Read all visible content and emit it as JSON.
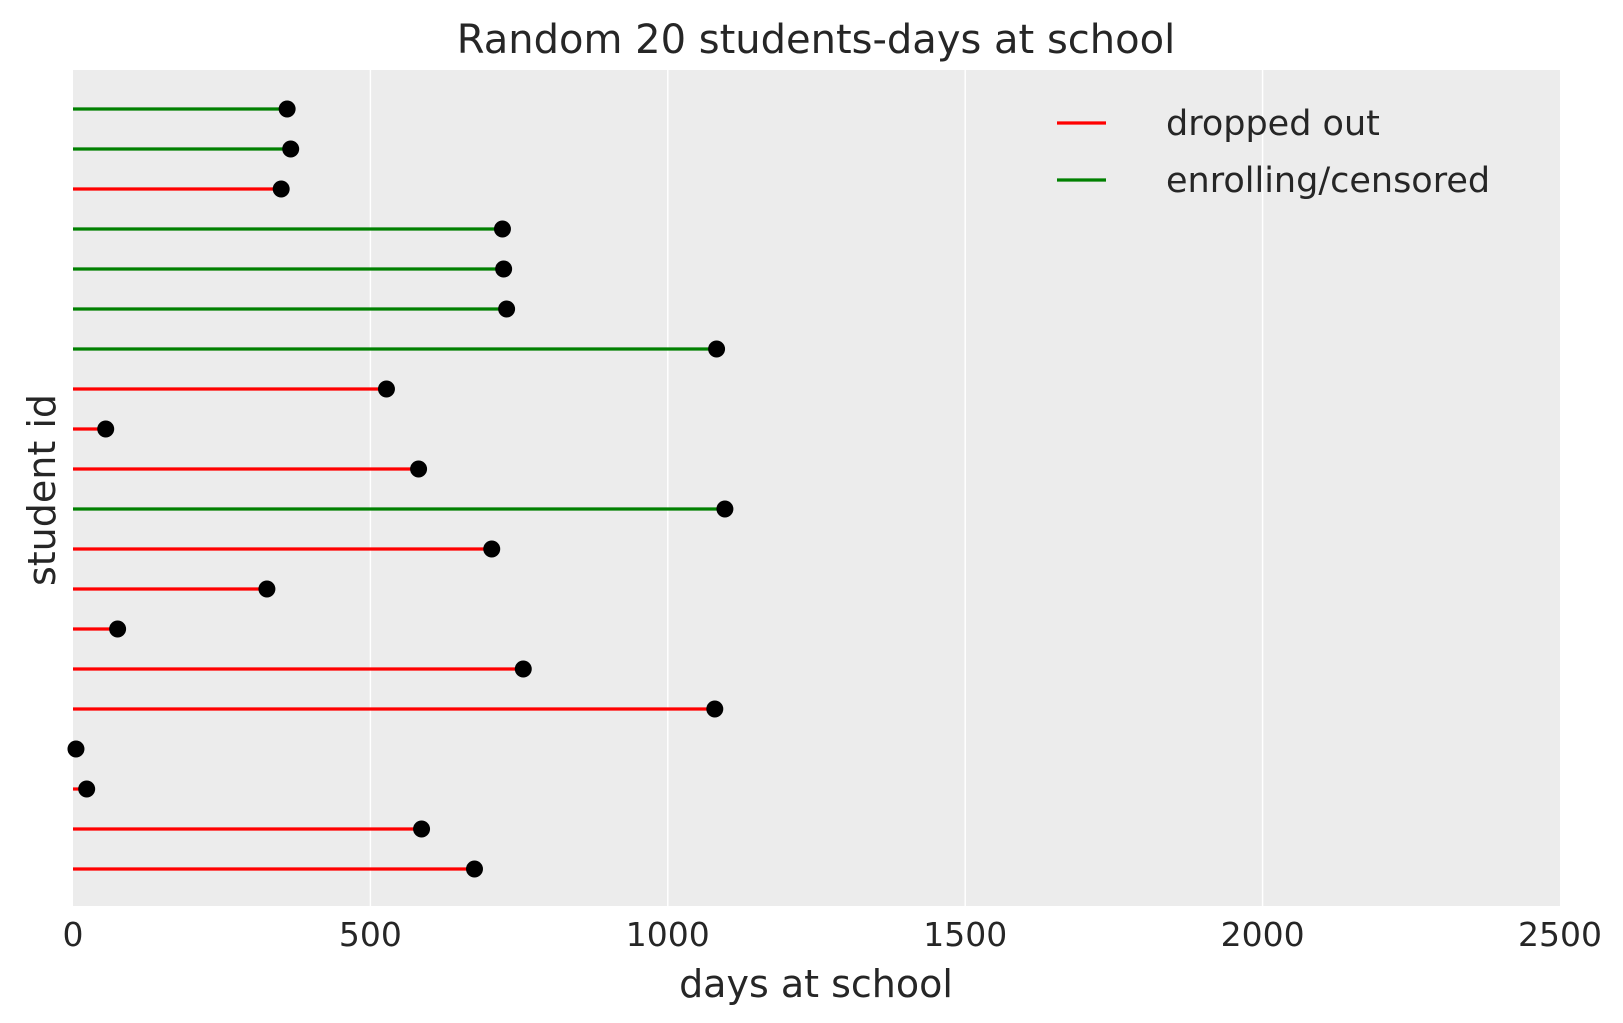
{
  "chart_data": {
    "type": "lollipop",
    "title": "Random 20 students-days at school",
    "xlabel": "days at school",
    "ylabel": "student id",
    "xlim": [
      0,
      2500
    ],
    "xticks": [
      "0",
      "500",
      "1000",
      "1500",
      "2000",
      "2500"
    ],
    "xtick_values": [
      0,
      500,
      1000,
      1500,
      2000,
      2500
    ],
    "grid": "vertical",
    "background": "#ececec",
    "legend": {
      "placement": "top-right",
      "entries": [
        {
          "label": "dropped out",
          "color": "#ff0000"
        },
        {
          "label": "enrolling/censored",
          "color": "#008000"
        }
      ]
    },
    "marker_color": "#000000",
    "students_top_to_bottom": [
      {
        "days": 360,
        "status": "enrolling/censored"
      },
      {
        "days": 366,
        "status": "enrolling/censored"
      },
      {
        "days": 350,
        "status": "dropped out"
      },
      {
        "days": 722,
        "status": "enrolling/censored"
      },
      {
        "days": 724,
        "status": "enrolling/censored"
      },
      {
        "days": 729,
        "status": "enrolling/censored"
      },
      {
        "days": 1082,
        "status": "enrolling/censored"
      },
      {
        "days": 527,
        "status": "dropped out"
      },
      {
        "days": 55,
        "status": "dropped out"
      },
      {
        "days": 581,
        "status": "dropped out"
      },
      {
        "days": 1096,
        "status": "enrolling/censored"
      },
      {
        "days": 704,
        "status": "dropped out"
      },
      {
        "days": 326,
        "status": "dropped out"
      },
      {
        "days": 75,
        "status": "dropped out"
      },
      {
        "days": 757,
        "status": "dropped out"
      },
      {
        "days": 1079,
        "status": "dropped out"
      },
      {
        "days": 5,
        "status": "dropped out"
      },
      {
        "days": 23,
        "status": "dropped out"
      },
      {
        "days": 586,
        "status": "dropped out"
      },
      {
        "days": 675,
        "status": "dropped out"
      }
    ]
  }
}
